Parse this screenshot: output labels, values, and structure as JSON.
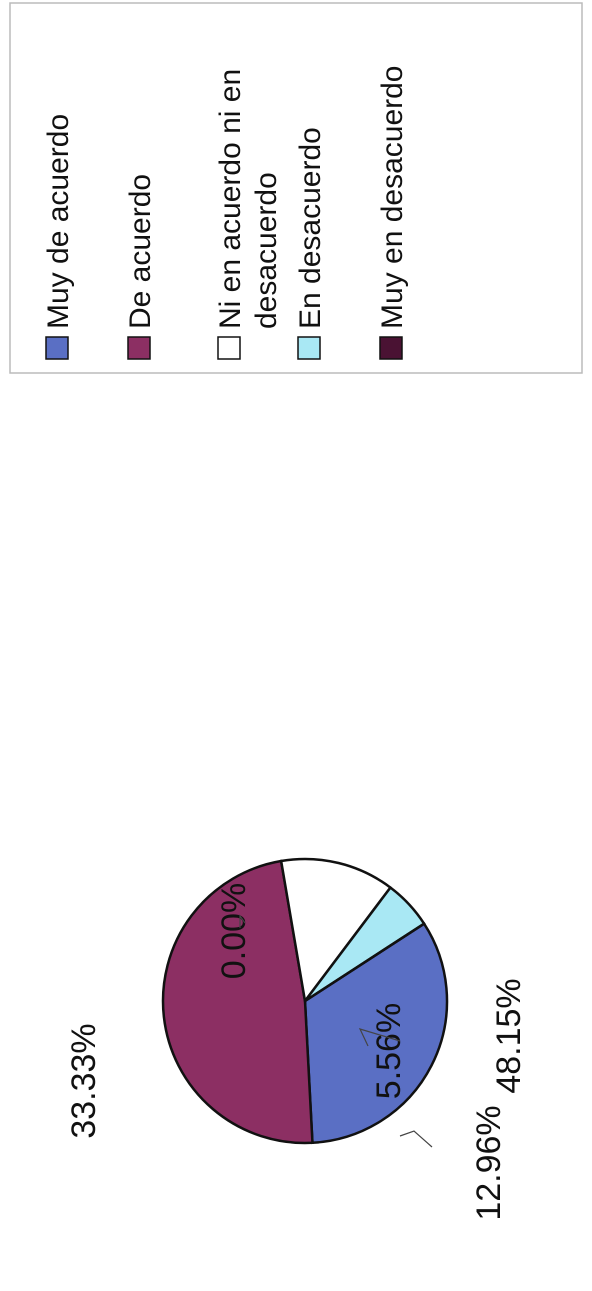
{
  "chart_data": {
    "type": "pie",
    "slices": [
      {
        "label": "Muy de acuerdo",
        "value": 33.33,
        "display": "33.33%",
        "color": "#5a6fc4"
      },
      {
        "label": "De acuerdo",
        "value": 48.15,
        "display": "48.15%",
        "color": "#8c2f63"
      },
      {
        "label": "Ni en acuerdo ni en desacuerdo",
        "value": 12.96,
        "display": "12.96%",
        "color": "#ffffff"
      },
      {
        "label": "En desacuerdo",
        "value": 5.56,
        "display": "5.56%",
        "color": "#a9e8f4"
      },
      {
        "label": "Muy en desacuerdo",
        "value": 0.0,
        "display": "0.00%",
        "color": "#4a1233"
      }
    ],
    "legend": {
      "position": "right",
      "entries": [
        {
          "lines": [
            "Muy de acuerdo"
          ]
        },
        {
          "lines": [
            "De acuerdo"
          ]
        },
        {
          "lines": [
            "Ni en acuerdo ni en",
            "desacuerdo"
          ]
        },
        {
          "lines": [
            "En desacuerdo"
          ]
        },
        {
          "lines": [
            "Muy en desacuerdo"
          ]
        }
      ]
    },
    "orientation": "rotated-90-ccw"
  }
}
